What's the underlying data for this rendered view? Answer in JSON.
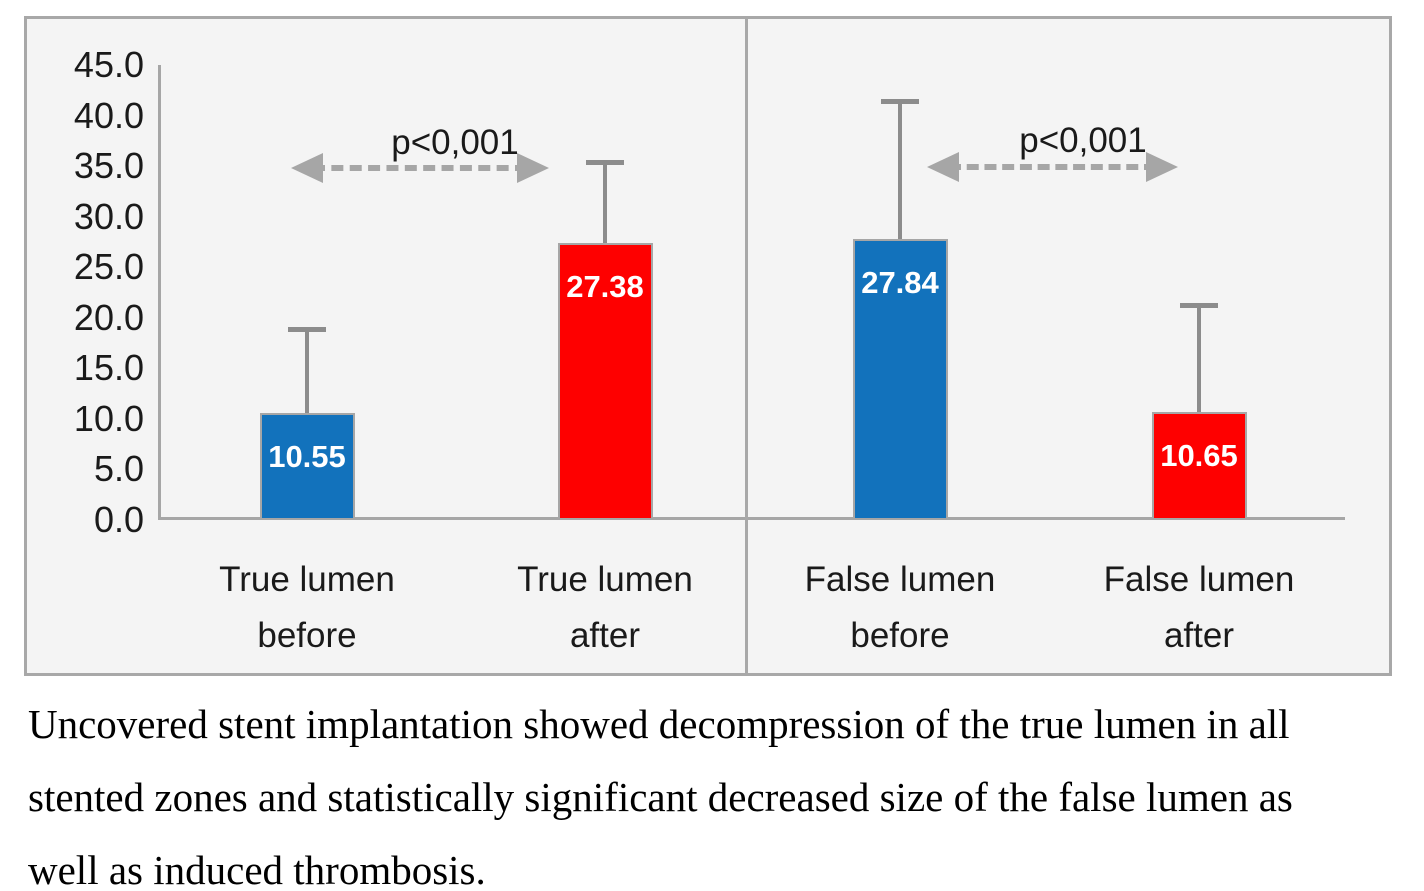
{
  "chart_data": {
    "type": "bar",
    "title": "",
    "xlabel": "",
    "ylabel": "",
    "categories": [
      {
        "line1": "True lumen",
        "line2": "before"
      },
      {
        "line1": "True lumen",
        "line2": "after"
      },
      {
        "line1": "False lumen",
        "line2": "before"
      },
      {
        "line1": "False lumen",
        "line2": "after"
      }
    ],
    "values": [
      10.55,
      27.38,
      27.84,
      10.65
    ],
    "data_labels": [
      "10.55",
      "27.38",
      "27.84",
      "10.65"
    ],
    "error_bar_tops": [
      18.9,
      35.4,
      41.4,
      21.3
    ],
    "bar_colors": [
      "#1272bc",
      "#fe0000",
      "#1272bc",
      "#fe0000"
    ],
    "y_ticks": [
      "45.0",
      "40.0",
      "35.0",
      "30.0",
      "25.0",
      "20.0",
      "15.0",
      "10.0",
      "5.0",
      "0.0"
    ],
    "ylim": [
      0,
      45
    ],
    "grid": false,
    "legend": "none",
    "panel_divider_between_categories": [
      1,
      2
    ],
    "annotations": [
      {
        "text": "p<0,001",
        "between": [
          0,
          1
        ]
      },
      {
        "text": "p<0,001",
        "between": [
          2,
          3
        ]
      }
    ],
    "colors": {
      "figure_background": "#f4f4f4",
      "figure_border": "#a8a8a8",
      "axis_line": "#a6a6a6",
      "error_bar": "#8c8c8c",
      "arrow": "#a6a6a6",
      "data_label_text": "#ffffff"
    }
  },
  "caption": {
    "lines": [
      "Uncovered stent implantation showed decompression of the true lumen in all",
      "stented zones and statistically significant decreased size of the false lumen as",
      "well as induced thrombosis."
    ]
  }
}
